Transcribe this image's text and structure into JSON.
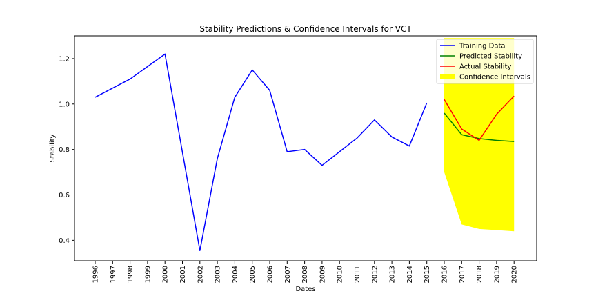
{
  "chart_data": {
    "type": "line",
    "title": "Stability Predictions & Confidence Intervals for VCT",
    "xlabel": "Dates",
    "ylabel": "Stability",
    "x": [
      "1996",
      "1997",
      "1998",
      "1999",
      "2000",
      "2001",
      "2002",
      "2003",
      "2004",
      "2005",
      "2006",
      "2007",
      "2008",
      "2009",
      "2010",
      "2011",
      "2012",
      "2013",
      "2014",
      "2015",
      "2016",
      "2017",
      "2018",
      "2019",
      "2020"
    ],
    "ylim": [
      0.31,
      1.3
    ],
    "yticks": [
      "0.4",
      "0.6",
      "0.8",
      "1.0",
      "1.2"
    ],
    "grid": false,
    "legend_position": "top-right",
    "series": [
      {
        "name": "Training Data",
        "color": "#0000ff",
        "x": [
          "1996",
          "1998",
          "2000",
          "2002",
          "2003",
          "2004",
          "2005",
          "2006",
          "2007",
          "2008",
          "2009",
          "2011",
          "2012",
          "2013",
          "2014",
          "2015"
        ],
        "values": [
          1.03,
          1.11,
          1.22,
          0.355,
          0.76,
          1.03,
          1.15,
          1.06,
          0.79,
          0.8,
          0.73,
          0.85,
          0.93,
          0.855,
          0.815,
          1.005
        ]
      },
      {
        "name": "Predicted Stability",
        "color": "#008000",
        "x": [
          "2016",
          "2017",
          "2018",
          "2019",
          "2020"
        ],
        "values": [
          0.96,
          0.865,
          0.848,
          0.84,
          0.835
        ]
      },
      {
        "name": "Actual Stability",
        "color": "#ff0000",
        "x": [
          "2016",
          "2017",
          "2018",
          "2019",
          "2020"
        ],
        "values": [
          1.02,
          0.89,
          0.84,
          0.955,
          1.035
        ]
      }
    ],
    "confidence_interval": {
      "name": "Confidence Intervals",
      "color": "#ffff00",
      "x": [
        "2016",
        "2017",
        "2018",
        "2019",
        "2020"
      ],
      "lower": [
        0.7,
        0.47,
        0.45,
        0.445,
        0.44
      ],
      "upper": [
        1.29,
        1.29,
        1.29,
        1.29,
        1.29
      ]
    }
  }
}
